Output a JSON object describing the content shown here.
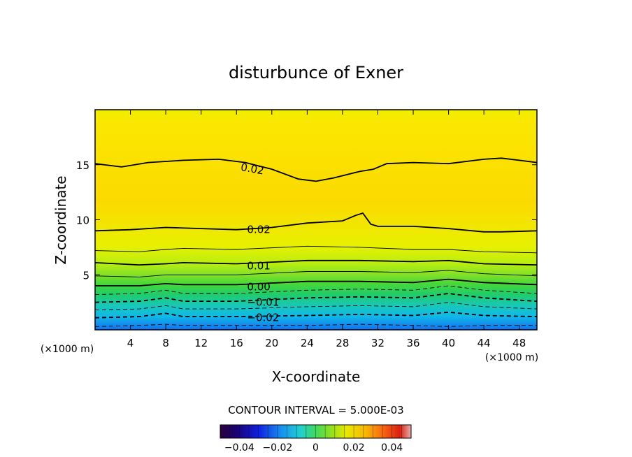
{
  "chart_data": {
    "type": "heatmap",
    "title": "disturbunce of Exner",
    "xlabel": "X-coordinate",
    "ylabel": "Z-coordinate",
    "x_unit": "(×1000 m)",
    "z_unit": "(×1000 m)",
    "xlim": [
      0,
      50
    ],
    "ylim": [
      0,
      20
    ],
    "x_ticks": [
      4,
      8,
      12,
      16,
      20,
      24,
      28,
      32,
      36,
      40,
      44,
      48
    ],
    "y_ticks": [
      5,
      10,
      15
    ],
    "contour_interval_text": "CONTOUR INTERVAL = 5.000E-03",
    "colorbar": {
      "range": [
        -0.05,
        0.05
      ],
      "tick_values": [
        -0.04,
        -0.02,
        0,
        0.02,
        0.04
      ],
      "tick_labels": [
        "−0.04",
        "−0.02",
        "0",
        "0.02",
        "0.04"
      ]
    },
    "contour_labels": [
      {
        "text": "0.02",
        "value": 0.02,
        "x": 16.5,
        "z": 14.8,
        "angle": 10
      },
      {
        "text": "0.02",
        "value": 0.02,
        "x": 17.2,
        "z": 9.1,
        "angle": 0
      },
      {
        "text": "0.01",
        "value": 0.01,
        "x": 17.2,
        "z": 5.8,
        "angle": 0
      },
      {
        "text": "0.00",
        "value": 0.0,
        "x": 17.2,
        "z": 3.9,
        "angle": 0
      },
      {
        "text": "−0.01",
        "value": -0.01,
        "x": 17.2,
        "z": 2.5,
        "angle": 0
      },
      {
        "text": "−0.02",
        "value": -0.02,
        "x": 17.2,
        "z": 1.1,
        "angle": 0
      }
    ],
    "contours": [
      {
        "value": -0.025,
        "x": [
          0,
          5,
          8,
          10,
          16,
          24,
          30,
          36,
          40,
          44,
          50
        ],
        "z": [
          0.3,
          0.4,
          0.5,
          0.4,
          0.4,
          0.4,
          0.5,
          0.4,
          0.3,
          0.4,
          0.4
        ]
      },
      {
        "value": -0.02,
        "x": [
          0,
          5,
          8,
          10,
          16,
          24,
          30,
          36,
          40,
          44,
          50
        ],
        "z": [
          1.1,
          1.2,
          1.5,
          1.2,
          1.2,
          1.3,
          1.4,
          1.3,
          1.6,
          1.3,
          1.2
        ]
      },
      {
        "value": -0.015,
        "x": [
          0,
          5,
          8,
          10,
          16,
          24,
          30,
          36,
          40,
          44,
          50
        ],
        "z": [
          1.8,
          1.9,
          2.2,
          1.9,
          1.9,
          2.1,
          2.2,
          2.1,
          2.5,
          2.1,
          1.9
        ]
      },
      {
        "value": -0.01,
        "x": [
          0,
          5,
          8,
          10,
          16,
          24,
          30,
          36,
          40,
          44,
          50
        ],
        "z": [
          2.5,
          2.6,
          2.9,
          2.6,
          2.6,
          2.9,
          3.0,
          2.9,
          3.3,
          2.9,
          2.6
        ]
      },
      {
        "value": -0.005,
        "x": [
          0,
          5,
          8,
          10,
          16,
          24,
          30,
          36,
          40,
          44,
          50
        ],
        "z": [
          3.2,
          3.3,
          3.6,
          3.3,
          3.3,
          3.6,
          3.7,
          3.6,
          4.0,
          3.6,
          3.3
        ]
      },
      {
        "value": 0.0,
        "x": [
          0,
          5,
          8,
          10,
          16,
          24,
          30,
          36,
          40,
          44,
          50
        ],
        "z": [
          4.0,
          4.0,
          4.2,
          4.1,
          4.1,
          4.4,
          4.4,
          4.3,
          4.6,
          4.3,
          4.1
        ]
      },
      {
        "value": 0.005,
        "x": [
          0,
          5,
          8,
          10,
          16,
          24,
          30,
          36,
          40,
          44,
          50
        ],
        "z": [
          4.9,
          4.8,
          5.0,
          5.0,
          5.0,
          5.3,
          5.3,
          5.2,
          5.4,
          5.1,
          4.9
        ]
      },
      {
        "value": 0.01,
        "x": [
          0,
          5,
          8,
          10,
          16,
          24,
          30,
          36,
          40,
          44,
          50
        ],
        "z": [
          6.1,
          5.9,
          6.0,
          6.1,
          6.0,
          6.3,
          6.3,
          6.2,
          6.3,
          6.0,
          5.9
        ]
      },
      {
        "value": 0.015,
        "x": [
          0,
          5,
          8,
          10,
          16,
          24,
          30,
          36,
          40,
          44,
          50
        ],
        "z": [
          7.2,
          7.1,
          7.3,
          7.4,
          7.3,
          7.6,
          7.5,
          7.3,
          7.3,
          7.1,
          7.0
        ]
      },
      {
        "value": 0.02,
        "x": [
          0,
          4,
          8,
          12,
          16,
          20,
          24,
          28,
          29.5,
          30.3,
          31.2,
          32,
          36,
          40,
          44,
          46,
          50
        ],
        "z": [
          9.0,
          9.1,
          9.3,
          9.2,
          9.1,
          9.3,
          9.7,
          9.9,
          10.4,
          10.6,
          9.6,
          9.4,
          9.4,
          9.2,
          8.9,
          8.9,
          9.0
        ]
      },
      {
        "value": 0.02,
        "x": [
          0,
          3,
          6,
          10,
          14,
          17,
          20,
          23,
          25,
          27,
          30,
          31.5,
          33,
          36,
          40,
          44,
          46,
          48,
          50
        ],
        "z": [
          15.1,
          14.8,
          15.2,
          15.4,
          15.5,
          15.2,
          14.6,
          13.7,
          13.5,
          13.8,
          14.4,
          14.6,
          15.1,
          15.2,
          15.1,
          15.5,
          15.6,
          15.4,
          15.2
        ]
      }
    ]
  }
}
